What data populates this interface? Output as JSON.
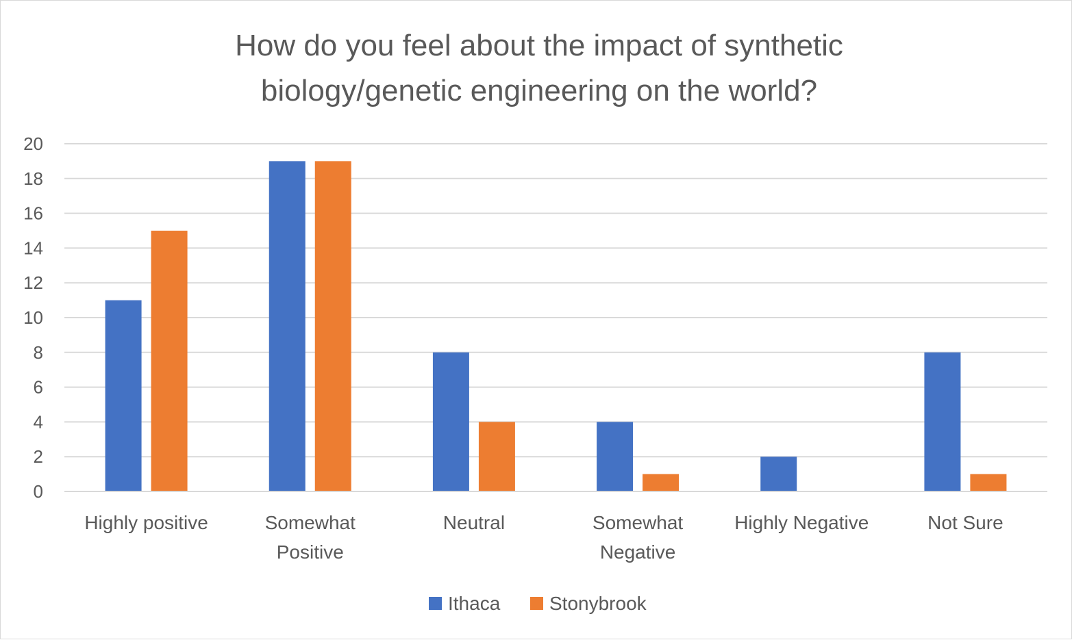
{
  "chart_data": {
    "type": "bar",
    "title_lines": [
      "How do you feel about the impact of synthetic",
      "biology/genetic engineering on the world?"
    ],
    "categories": [
      [
        "Highly positive"
      ],
      [
        "Somewhat",
        "Positive"
      ],
      [
        "Neutral"
      ],
      [
        "Somewhat",
        "Negative"
      ],
      [
        "Highly Negative"
      ],
      [
        "Not Sure"
      ]
    ],
    "series": [
      {
        "name": "Ithaca",
        "color": "#4472C4",
        "values": [
          11,
          19,
          8,
          4,
          2,
          8
        ]
      },
      {
        "name": "Stonybrook",
        "color": "#ED7D31",
        "values": [
          15,
          19,
          4,
          1,
          0,
          1
        ]
      }
    ],
    "ylim": [
      0,
      20
    ],
    "yticks": [
      "0",
      "2",
      "4",
      "6",
      "8",
      "10",
      "12",
      "14",
      "16",
      "18",
      "20"
    ],
    "grid": true,
    "legend_position": "bottom"
  }
}
